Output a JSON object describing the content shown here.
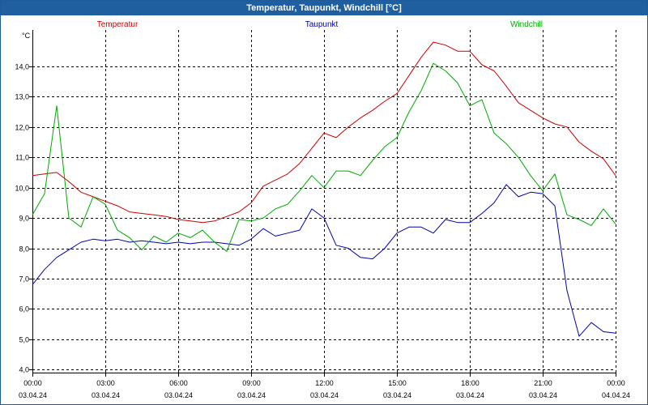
{
  "window": {
    "title": "Temperatur, Taupunkt, Windchill [°C]"
  },
  "chart_data": {
    "type": "line",
    "title": "Temperatur, Taupunkt, Windchill [°C]",
    "ylabel": "°C",
    "xlabel": "",
    "ylim": [
      3.9,
      15.2
    ],
    "xlim": [
      0,
      24
    ],
    "grid": true,
    "y_ticks": [
      4.0,
      5.0,
      6.0,
      7.0,
      8.0,
      9.0,
      10.0,
      11.0,
      12.0,
      13.0,
      14.0
    ],
    "y_tick_labels": [
      "4,0",
      "5,0",
      "6,0",
      "7,0",
      "8,0",
      "9,0",
      "10,0",
      "11,0",
      "12,0",
      "13,0",
      "14,0"
    ],
    "x_ticks": [
      {
        "hour": 0,
        "time": "00:00",
        "date": "03.04.24"
      },
      {
        "hour": 3,
        "time": "03:00",
        "date": "03.04.24"
      },
      {
        "hour": 6,
        "time": "06:00",
        "date": "03.04.24"
      },
      {
        "hour": 9,
        "time": "09:00",
        "date": "03.04.24"
      },
      {
        "hour": 12,
        "time": "12:00",
        "date": "03.04.24"
      },
      {
        "hour": 15,
        "time": "15:00",
        "date": "03.04.24"
      },
      {
        "hour": 18,
        "time": "18:00",
        "date": "03.04.24"
      },
      {
        "hour": 21,
        "time": "21:00",
        "date": "03.04.24"
      },
      {
        "hour": 24,
        "time": "00:00",
        "date": "04.04.24"
      }
    ],
    "series": [
      {
        "name": "Temperatur",
        "color": "#cc0000",
        "x": [
          0,
          0.5,
          1,
          1.5,
          2,
          2.5,
          3,
          3.5,
          4,
          4.5,
          5,
          5.5,
          6,
          6.5,
          7,
          7.5,
          8,
          8.5,
          9,
          9.5,
          10,
          10.5,
          11,
          11.5,
          12,
          12.5,
          13,
          13.5,
          14,
          14.5,
          15,
          15.5,
          16,
          16.5,
          17,
          17.5,
          18,
          18.5,
          19,
          19.5,
          20,
          20.5,
          21,
          21.5,
          22,
          22.5,
          23,
          23.5,
          24
        ],
        "values": [
          10.4,
          10.45,
          10.5,
          10.2,
          9.85,
          9.7,
          9.55,
          9.4,
          9.2,
          9.15,
          9.1,
          9.05,
          8.95,
          8.9,
          8.85,
          8.9,
          9.05,
          9.2,
          9.5,
          10.05,
          10.25,
          10.45,
          10.8,
          11.3,
          11.8,
          11.65,
          12.0,
          12.3,
          12.55,
          12.85,
          13.1,
          13.7,
          14.3,
          14.8,
          14.7,
          14.5,
          14.5,
          14.05,
          13.85,
          13.35,
          12.8,
          12.55,
          12.3,
          12.1,
          12.0,
          11.5,
          11.2,
          10.95,
          10.4
        ]
      },
      {
        "name": "Taupunkt",
        "color": "#0000aa",
        "x": [
          0,
          0.5,
          1,
          1.5,
          2,
          2.5,
          3,
          3.5,
          4,
          4.5,
          5,
          5.5,
          6,
          6.5,
          7,
          7.5,
          8,
          8.5,
          9,
          9.5,
          10,
          10.5,
          11,
          11.5,
          12,
          12.5,
          13,
          13.5,
          14,
          14.5,
          15,
          15.5,
          16,
          16.5,
          17,
          17.5,
          18,
          18.5,
          19,
          19.5,
          20,
          20.5,
          21,
          21.5,
          22,
          22.5,
          23,
          23.5,
          24
        ],
        "values": [
          6.8,
          7.3,
          7.7,
          7.95,
          8.2,
          8.3,
          8.25,
          8.3,
          8.2,
          8.25,
          8.2,
          8.15,
          8.2,
          8.15,
          8.2,
          8.2,
          8.15,
          8.1,
          8.3,
          8.65,
          8.4,
          8.5,
          8.6,
          9.3,
          9.0,
          8.1,
          8.0,
          7.7,
          7.65,
          8.0,
          8.5,
          8.7,
          8.7,
          8.5,
          8.95,
          8.85,
          8.85,
          9.15,
          9.5,
          10.1,
          9.7,
          9.85,
          9.8,
          9.4,
          6.6,
          5.1,
          5.55,
          5.25,
          5.2
        ]
      },
      {
        "name": "Windchill",
        "color": "#00aa00",
        "x": [
          0,
          0.5,
          1,
          1.5,
          2,
          2.5,
          3,
          3.5,
          4,
          4.5,
          5,
          5.5,
          6,
          6.5,
          7,
          7.5,
          8,
          8.5,
          9,
          9.5,
          10,
          10.5,
          11,
          11.5,
          12,
          12.5,
          13,
          13.5,
          14,
          14.5,
          15,
          15.5,
          16,
          16.5,
          17,
          17.5,
          18,
          18.5,
          19,
          19.5,
          20,
          20.5,
          21,
          21.5,
          22,
          22.5,
          23,
          23.5,
          24
        ],
        "values": [
          9.1,
          9.8,
          12.7,
          9.0,
          8.7,
          9.7,
          9.45,
          8.6,
          8.35,
          7.95,
          8.4,
          8.2,
          8.5,
          8.35,
          8.6,
          8.2,
          7.9,
          8.95,
          8.9,
          9.0,
          9.3,
          9.45,
          9.9,
          10.4,
          10.0,
          10.55,
          10.55,
          10.4,
          10.9,
          11.35,
          11.65,
          12.5,
          13.2,
          14.1,
          13.85,
          13.45,
          12.7,
          12.9,
          11.8,
          11.45,
          11.0,
          10.4,
          9.9,
          10.45,
          9.1,
          8.95,
          8.75,
          9.3,
          8.8
        ]
      }
    ]
  }
}
